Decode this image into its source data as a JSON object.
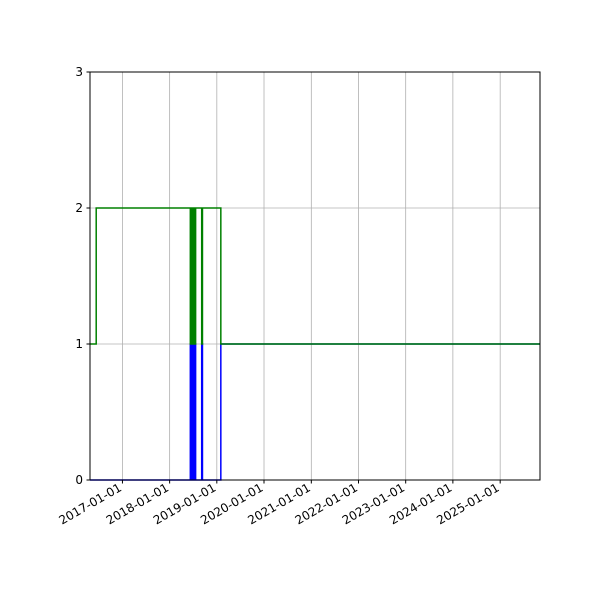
{
  "chart_data": {
    "type": "line",
    "title": "",
    "xlabel": "",
    "ylabel": "",
    "x_axis_type": "date",
    "xlim": [
      "2016-04-25",
      "2025-11-05"
    ],
    "ylim": [
      0,
      3
    ],
    "grid": true,
    "legend": "none",
    "step": "post",
    "x_ticks": [
      "2017-01-01",
      "2018-01-01",
      "2019-01-01",
      "2020-01-01",
      "2021-01-01",
      "2022-01-01",
      "2023-01-01",
      "2024-01-01",
      "2025-01-01"
    ],
    "y_ticks": [
      "0",
      "1",
      "2",
      "3"
    ],
    "series": [
      {
        "color": "#008000",
        "x": [
          "2016-04-25",
          "2016-06-12",
          "2018-06-10",
          "2018-06-14",
          "2018-06-19",
          "2018-06-24",
          "2018-06-28",
          "2018-07-03",
          "2018-07-08",
          "2018-07-12",
          "2018-07-17",
          "2018-07-21",
          "2018-07-25",
          "2018-09-06",
          "2018-09-12",
          "2019-02-01",
          "2025-11-05"
        ],
        "values": [
          1,
          2,
          1,
          2,
          1,
          2,
          1,
          2,
          1,
          2,
          1,
          2,
          2,
          1,
          2,
          1,
          1
        ]
      },
      {
        "color": "#0000ff",
        "x": [
          "2016-04-25",
          "2018-06-10",
          "2018-06-14",
          "2018-06-19",
          "2018-06-24",
          "2018-06-28",
          "2018-07-03",
          "2018-07-08",
          "2018-07-12",
          "2018-07-17",
          "2018-07-21",
          "2018-07-25",
          "2018-09-06",
          "2018-09-12",
          "2019-02-01",
          "2025-11-05"
        ],
        "values": [
          0,
          1,
          0,
          1,
          0,
          1,
          0,
          1,
          0,
          1,
          0,
          0,
          1,
          0,
          1,
          1
        ]
      }
    ]
  }
}
